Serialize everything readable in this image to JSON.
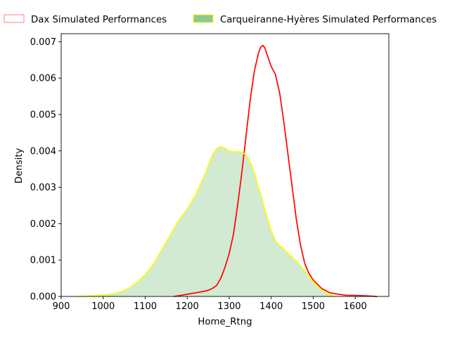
{
  "chart_data": {
    "type": "area",
    "title": "",
    "xlabel": "Home_Rtng",
    "ylabel": "Density",
    "xlim": [
      900,
      1680
    ],
    "ylim": [
      0,
      0.00722
    ],
    "xticks": [
      900,
      1000,
      1100,
      1200,
      1300,
      1400,
      1500,
      1600
    ],
    "xtick_labels": [
      "900",
      "1000",
      "1100",
      "1200",
      "1300",
      "1400",
      "1500",
      "1600"
    ],
    "yticks": [
      0,
      0.001,
      0.002,
      0.003,
      0.004,
      0.005,
      0.006,
      0.007
    ],
    "ytick_labels": [
      "0.000",
      "0.001",
      "0.002",
      "0.003",
      "0.004",
      "0.005",
      "0.006",
      "0.007"
    ],
    "grid": false,
    "legend_placement": "top, above plot",
    "series": [
      {
        "name": "Dax Simulated Performances",
        "line_color": "#ff0000",
        "fill": false,
        "legend_face": "#ffffff",
        "legend_edge": "#ff8080",
        "x": [
          1168,
          1180,
          1200,
          1220,
          1240,
          1250,
          1260,
          1270,
          1280,
          1290,
          1300,
          1310,
          1320,
          1330,
          1340,
          1350,
          1360,
          1370,
          1375,
          1380,
          1385,
          1390,
          1400,
          1410,
          1420,
          1430,
          1440,
          1450,
          1460,
          1470,
          1480,
          1490,
          1500,
          1520,
          1540,
          1560,
          1580,
          1600,
          1620,
          1652
        ],
        "y": [
          0.0,
          2e-05,
          6e-05,
          0.0001,
          0.00014,
          0.00017,
          0.00022,
          0.0003,
          0.0005,
          0.0008,
          0.00118,
          0.0017,
          0.0025,
          0.0034,
          0.0044,
          0.0054,
          0.0062,
          0.0067,
          0.00685,
          0.0069,
          0.00683,
          0.00665,
          0.00632,
          0.0061,
          0.0056,
          0.0048,
          0.0039,
          0.003,
          0.0021,
          0.0014,
          0.0009,
          0.00063,
          0.00045,
          0.00022,
          0.0001,
          6e-05,
          3e-05,
          3e-05,
          2e-05,
          0.0
        ]
      },
      {
        "name": "Carqueiranne-Hyères Simulated Performances",
        "line_color": "#ffff00",
        "fill": true,
        "fill_color": "#2ca02c",
        "legend_face": "#8fc98f",
        "legend_edge": "#ffff00",
        "x": [
          935,
          960,
          980,
          1000,
          1020,
          1040,
          1060,
          1080,
          1100,
          1120,
          1140,
          1160,
          1180,
          1200,
          1220,
          1240,
          1250,
          1260,
          1270,
          1280,
          1290,
          1300,
          1310,
          1320,
          1330,
          1340,
          1350,
          1360,
          1370,
          1380,
          1390,
          1400,
          1410,
          1420,
          1430,
          1440,
          1450,
          1460,
          1470,
          1480,
          1500,
          1520,
          1540,
          1555
        ],
        "y": [
          0.0,
          1e-05,
          2e-05,
          4e-05,
          7e-05,
          0.00012,
          0.00022,
          0.00038,
          0.0006,
          0.0009,
          0.0013,
          0.0017,
          0.0021,
          0.0024,
          0.0028,
          0.0033,
          0.0036,
          0.0039,
          0.00406,
          0.00412,
          0.00408,
          0.004,
          0.00398,
          0.00398,
          0.00396,
          0.0039,
          0.0037,
          0.0034,
          0.003,
          0.0026,
          0.0022,
          0.0018,
          0.00155,
          0.0014,
          0.0013,
          0.0012,
          0.00108,
          0.00097,
          0.00084,
          0.0007,
          0.0004,
          0.00018,
          5e-05,
          0.0
        ]
      }
    ]
  }
}
